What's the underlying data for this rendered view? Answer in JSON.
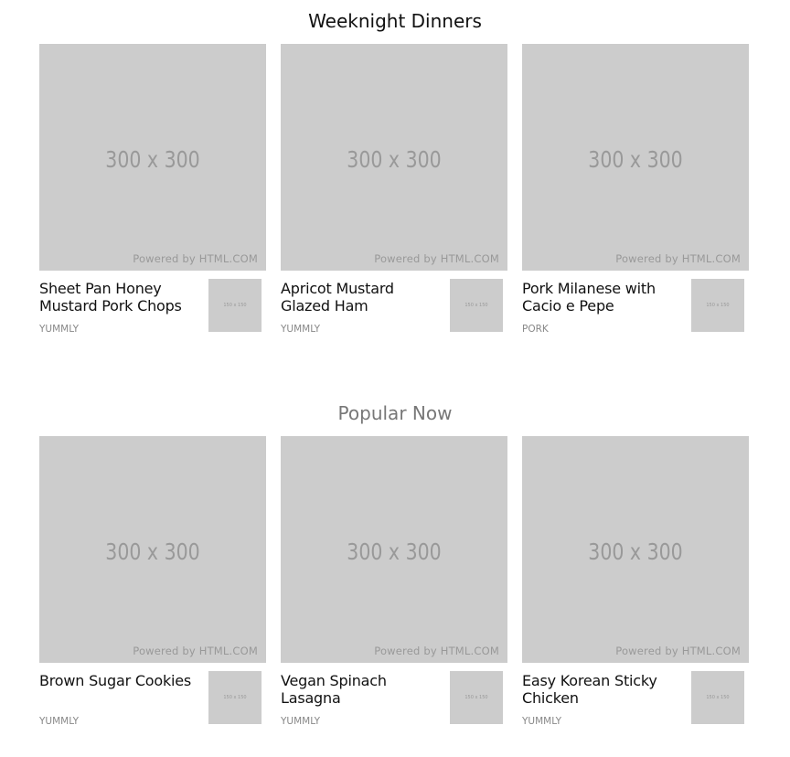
{
  "sections": [
    {
      "title": "Weeknight Dinners",
      "cards": [
        {
          "title": "Sheet Pan Honey Mustard Pork Chops",
          "source": "YUMMLY",
          "hero_label": "300 x 300",
          "hero_credit": "Powered by HTML.COM",
          "thumb_label": "150 x 150"
        },
        {
          "title": "Apricot Mustard Glazed Ham",
          "source": "YUMMLY",
          "hero_label": "300 x 300",
          "hero_credit": "Powered by HTML.COM",
          "thumb_label": "150 x 150"
        },
        {
          "title": "Pork Milanese with Cacio e Pepe",
          "source": "PORK",
          "hero_label": "300 x 300",
          "hero_credit": "Powered by HTML.COM",
          "thumb_label": "150 x 150"
        }
      ]
    },
    {
      "title": "Popular Now",
      "cards": [
        {
          "title": "Brown Sugar Cookies",
          "source": "YUMMLY",
          "hero_label": "300 x 300",
          "hero_credit": "Powered by HTML.COM",
          "thumb_label": "150 x 150"
        },
        {
          "title": "Vegan Spinach Lasagna",
          "source": "YUMMLY",
          "hero_label": "300 x 300",
          "hero_credit": "Powered by HTML.COM",
          "thumb_label": "150 x 150"
        },
        {
          "title": "Easy Korean Sticky Chicken",
          "source": "YUMMLY",
          "hero_label": "300 x 300",
          "hero_credit": "Powered by HTML.COM",
          "thumb_label": "150 x 150"
        }
      ]
    }
  ],
  "colors": {
    "placeholder_bg": "#cccccc",
    "placeholder_text": "#999999",
    "source_text": "#888888",
    "section2_title": "#777777"
  }
}
